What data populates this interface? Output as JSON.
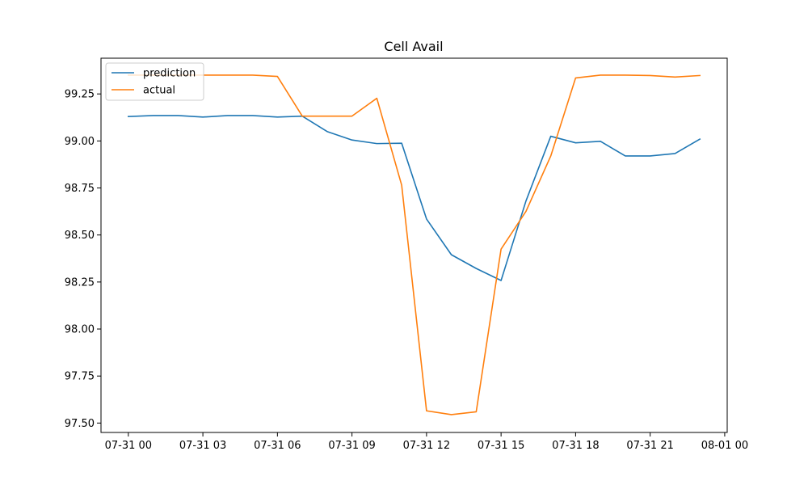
{
  "chart_data": {
    "type": "line",
    "title": "Cell Avail",
    "xlabel": "",
    "ylabel": "",
    "x": [
      "07-31 00",
      "07-31 01",
      "07-31 02",
      "07-31 03",
      "07-31 04",
      "07-31 05",
      "07-31 06",
      "07-31 07",
      "07-31 08",
      "07-31 09",
      "07-31 10",
      "07-31 11",
      "07-31 12",
      "07-31 13",
      "07-31 14",
      "07-31 15",
      "07-31 16",
      "07-31 17",
      "07-31 18",
      "07-31 19",
      "07-31 20",
      "07-31 21",
      "07-31 22",
      "07-31 23"
    ],
    "x_ticks": [
      "07-31 00",
      "07-31 03",
      "07-31 06",
      "07-31 09",
      "07-31 12",
      "07-31 15",
      "07-31 18",
      "07-31 21",
      "08-01 00"
    ],
    "xlim_hours": [
      -1.1,
      24.1
    ],
    "ylim": [
      97.45,
      99.44
    ],
    "y_ticks": [
      "97.50",
      "97.75",
      "98.00",
      "98.25",
      "98.50",
      "98.75",
      "99.00",
      "99.25"
    ],
    "legend_position": "upper-left",
    "grid": false,
    "series": [
      {
        "name": "prediction",
        "color": "#1f77b4",
        "values": [
          99.13,
          99.135,
          99.135,
          99.127,
          99.135,
          99.135,
          99.127,
          99.132,
          99.05,
          99.005,
          98.986,
          98.988,
          98.585,
          98.395,
          98.322,
          98.258,
          98.68,
          99.025,
          98.99,
          98.998,
          98.92,
          98.92,
          98.933,
          99.01
        ]
      },
      {
        "name": "actual",
        "color": "#ff7f0e",
        "values": [
          99.35,
          99.35,
          99.35,
          99.35,
          99.35,
          99.35,
          99.343,
          99.132,
          99.132,
          99.132,
          99.227,
          98.765,
          97.565,
          97.545,
          97.56,
          98.425,
          98.625,
          98.92,
          99.335,
          99.35,
          99.35,
          99.348,
          99.34,
          99.348
        ]
      }
    ]
  }
}
